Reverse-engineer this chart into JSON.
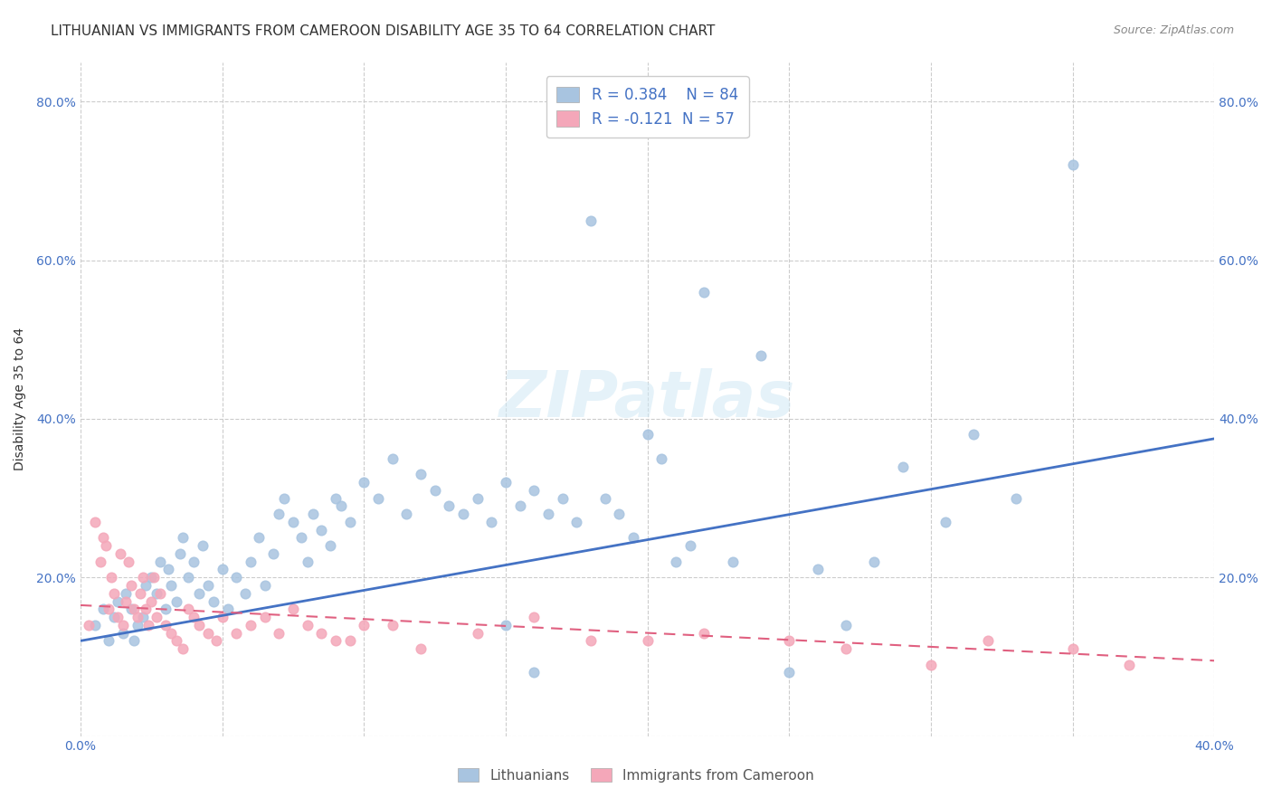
{
  "title": "LITHUANIAN VS IMMIGRANTS FROM CAMEROON DISABILITY AGE 35 TO 64 CORRELATION CHART",
  "source": "Source: ZipAtlas.com",
  "ylabel": "Disability Age 35 to 64",
  "xmin": 0.0,
  "xmax": 0.4,
  "ymin": 0.0,
  "ymax": 0.85,
  "x_ticks": [
    0.0,
    0.05,
    0.1,
    0.15,
    0.2,
    0.25,
    0.3,
    0.35,
    0.4
  ],
  "y_ticks": [
    0.0,
    0.2,
    0.4,
    0.6,
    0.8
  ],
  "R_blue": 0.384,
  "N_blue": 84,
  "R_pink": -0.121,
  "N_pink": 57,
  "blue_color": "#a8c4e0",
  "pink_color": "#f4a7b9",
  "blue_line_color": "#4472c4",
  "pink_line_color": "#e06080",
  "legend_label_blue": "Lithuanians",
  "legend_label_pink": "Immigrants from Cameroon",
  "watermark": "ZIPatlas",
  "title_fontsize": 11,
  "axis_label_fontsize": 10,
  "tick_fontsize": 10,
  "blue_scatter_x": [
    0.005,
    0.008,
    0.01,
    0.012,
    0.013,
    0.015,
    0.016,
    0.018,
    0.019,
    0.02,
    0.022,
    0.023,
    0.025,
    0.027,
    0.028,
    0.03,
    0.031,
    0.032,
    0.034,
    0.035,
    0.036,
    0.038,
    0.04,
    0.042,
    0.043,
    0.045,
    0.047,
    0.05,
    0.052,
    0.055,
    0.058,
    0.06,
    0.063,
    0.065,
    0.068,
    0.07,
    0.072,
    0.075,
    0.078,
    0.08,
    0.082,
    0.085,
    0.088,
    0.09,
    0.092,
    0.095,
    0.1,
    0.105,
    0.11,
    0.115,
    0.12,
    0.125,
    0.13,
    0.135,
    0.14,
    0.145,
    0.15,
    0.155,
    0.16,
    0.165,
    0.17,
    0.175,
    0.18,
    0.185,
    0.19,
    0.195,
    0.2,
    0.205,
    0.21,
    0.215,
    0.22,
    0.23,
    0.24,
    0.25,
    0.26,
    0.27,
    0.28,
    0.29,
    0.305,
    0.315,
    0.15,
    0.16,
    0.33,
    0.35
  ],
  "blue_scatter_y": [
    0.14,
    0.16,
    0.12,
    0.15,
    0.17,
    0.13,
    0.18,
    0.16,
    0.12,
    0.14,
    0.15,
    0.19,
    0.2,
    0.18,
    0.22,
    0.16,
    0.21,
    0.19,
    0.17,
    0.23,
    0.25,
    0.2,
    0.22,
    0.18,
    0.24,
    0.19,
    0.17,
    0.21,
    0.16,
    0.2,
    0.18,
    0.22,
    0.25,
    0.19,
    0.23,
    0.28,
    0.3,
    0.27,
    0.25,
    0.22,
    0.28,
    0.26,
    0.24,
    0.3,
    0.29,
    0.27,
    0.32,
    0.3,
    0.35,
    0.28,
    0.33,
    0.31,
    0.29,
    0.28,
    0.3,
    0.27,
    0.32,
    0.29,
    0.31,
    0.28,
    0.3,
    0.27,
    0.65,
    0.3,
    0.28,
    0.25,
    0.38,
    0.35,
    0.22,
    0.24,
    0.56,
    0.22,
    0.48,
    0.08,
    0.21,
    0.14,
    0.22,
    0.34,
    0.27,
    0.38,
    0.14,
    0.08,
    0.3,
    0.72
  ],
  "pink_scatter_x": [
    0.003,
    0.005,
    0.007,
    0.008,
    0.009,
    0.01,
    0.011,
    0.012,
    0.013,
    0.014,
    0.015,
    0.016,
    0.017,
    0.018,
    0.019,
    0.02,
    0.021,
    0.022,
    0.023,
    0.024,
    0.025,
    0.026,
    0.027,
    0.028,
    0.03,
    0.032,
    0.034,
    0.036,
    0.038,
    0.04,
    0.042,
    0.045,
    0.048,
    0.05,
    0.055,
    0.06,
    0.065,
    0.07,
    0.075,
    0.08,
    0.085,
    0.09,
    0.095,
    0.1,
    0.11,
    0.12,
    0.14,
    0.16,
    0.18,
    0.2,
    0.22,
    0.25,
    0.27,
    0.3,
    0.32,
    0.35,
    0.37
  ],
  "pink_scatter_y": [
    0.14,
    0.27,
    0.22,
    0.25,
    0.24,
    0.16,
    0.2,
    0.18,
    0.15,
    0.23,
    0.14,
    0.17,
    0.22,
    0.19,
    0.16,
    0.15,
    0.18,
    0.2,
    0.16,
    0.14,
    0.17,
    0.2,
    0.15,
    0.18,
    0.14,
    0.13,
    0.12,
    0.11,
    0.16,
    0.15,
    0.14,
    0.13,
    0.12,
    0.15,
    0.13,
    0.14,
    0.15,
    0.13,
    0.16,
    0.14,
    0.13,
    0.12,
    0.12,
    0.14,
    0.14,
    0.11,
    0.13,
    0.15,
    0.12,
    0.12,
    0.13,
    0.12,
    0.11,
    0.09,
    0.12,
    0.11,
    0.09
  ],
  "blue_line_y_start": 0.12,
  "blue_line_y_end": 0.375,
  "pink_line_y_start": 0.165,
  "pink_line_y_end": 0.095
}
